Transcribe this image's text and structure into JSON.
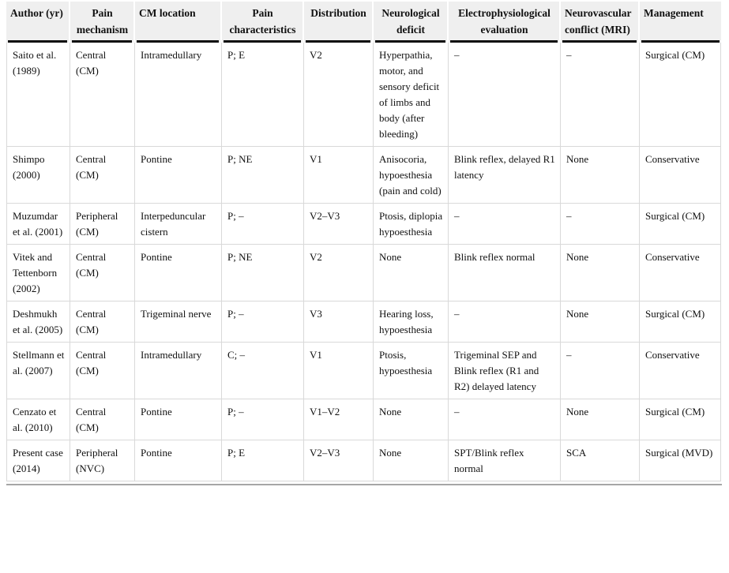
{
  "table": {
    "name": "trigeminal-neuralgia-cavernous-malformation-literature-review-table",
    "headers": [
      "Author (yr)",
      "Pain mechanism",
      "CM location",
      "Pain characteristics",
      "Distribution",
      "Neurological deficit",
      "Electrophysiological evaluation",
      "Neurovascular conflict (MRI)",
      "Management"
    ],
    "rows": [
      [
        "Saito et al. (1989)",
        "Central (CM)",
        "Intramedullary",
        "P; E",
        "V2",
        "Hyperpathia, motor, and sensory deficit of limbs and body (after bleeding)",
        "–",
        "–",
        "Surgical (CM)"
      ],
      [
        "Shimpo (2000)",
        "Central (CM)",
        "Pontine",
        "P; NE",
        "V1",
        "Anisocoria, hypoesthesia (pain and cold)",
        "Blink reflex, delayed R1 latency",
        "None",
        "Conservative"
      ],
      [
        "Muzumdar et al. (2001)",
        "Peripheral (CM)",
        "Interpeduncular cistern",
        "P; –",
        "V2–V3",
        "Ptosis, diplopia hypoesthesia",
        "–",
        "–",
        "Surgical (CM)"
      ],
      [
        "Vitek and Tettenborn (2002)",
        "Central (CM)",
        "Pontine",
        "P; NE",
        "V2",
        "None",
        "Blink reflex normal",
        "None",
        "Conservative"
      ],
      [
        "Deshmukh et al. (2005)",
        "Central (CM)",
        "Trigeminal nerve",
        "P; –",
        "V3",
        "Hearing loss, hypoesthesia",
        "–",
        "None",
        "Surgical (CM)"
      ],
      [
        "Stellmann et al. (2007)",
        "Central (CM)",
        "Intramedullary",
        "C; –",
        "V1",
        "Ptosis, hypoesthesia",
        "Trigeminal SEP and Blink reflex (R1 and R2) delayed latency",
        "–",
        "Conservative"
      ],
      [
        "Cenzato et al. (2010)",
        "Central (CM)",
        "Pontine",
        "P; –",
        "V1–V2",
        "None",
        "–",
        "None",
        "Surgical (CM)"
      ],
      [
        "Present case (2014)",
        "Peripheral (NVC)",
        "Pontine",
        "P; E",
        "V2–V3",
        "None",
        "SPT/Blink reflex normal",
        "SCA",
        "Surgical (MVD)"
      ]
    ],
    "colors": {
      "header_background": "#efefef",
      "header_underline": "#0c0c0c",
      "grid_line": "#d9d9d9",
      "outer_bottom_border": "#a6a6a6",
      "text": "#111111"
    }
  }
}
